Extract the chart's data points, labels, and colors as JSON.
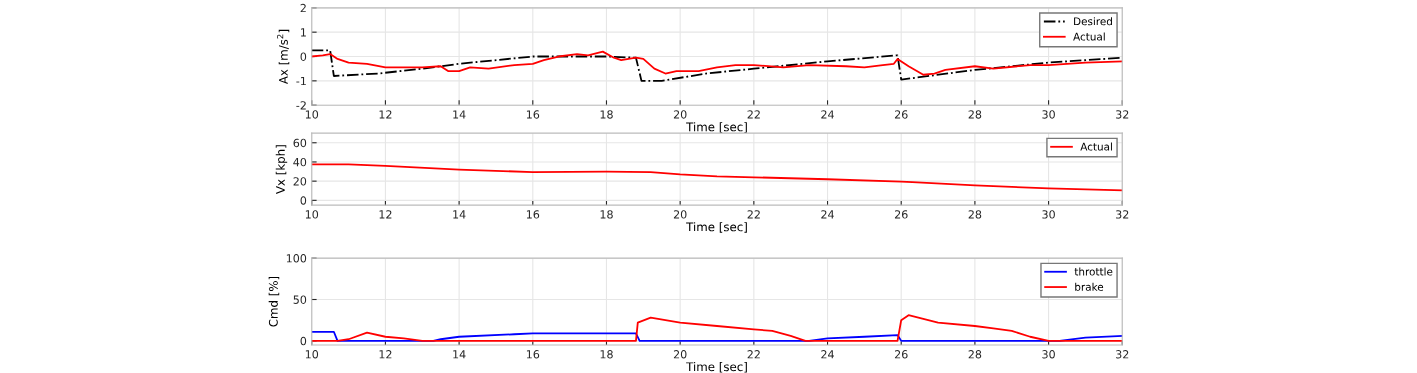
{
  "chart_data": [
    {
      "type": "line",
      "xlabel": "Time [sec]",
      "ylabel": "Ax [m/s$^{2}$]",
      "xlim": [
        10,
        32
      ],
      "xticks": [
        10,
        12,
        14,
        16,
        18,
        20,
        22,
        24,
        26,
        28,
        30,
        32
      ],
      "ylim": [
        -2,
        2
      ],
      "yticks": [
        -2,
        -1,
        0,
        1,
        2
      ],
      "grid": true,
      "legend": "top right",
      "series": [
        {
          "name": "Desired",
          "color": "#000000",
          "line_style": "dashdot",
          "x": [
            10,
            10.5,
            10.6,
            11.8,
            13,
            14,
            16,
            17,
            18,
            18.8,
            18.95,
            19.5,
            20.7,
            22,
            24,
            25.9,
            26,
            28,
            30,
            32
          ],
          "values": [
            0.25,
            0.25,
            -0.8,
            -0.7,
            -0.5,
            -0.3,
            0,
            0,
            0,
            -0.05,
            -1.0,
            -1.0,
            -0.7,
            -0.5,
            -0.2,
            0.05,
            -0.95,
            -0.55,
            -0.25,
            -0.05
          ]
        },
        {
          "name": "Actual",
          "color": "#ff0000",
          "x": [
            10,
            10.3,
            10.5,
            10.7,
            11,
            11.5,
            12,
            12.5,
            13,
            13.5,
            13.7,
            14,
            14.3,
            14.8,
            15.5,
            16,
            16.3,
            16.7,
            17.2,
            17.5,
            17.9,
            18.2,
            18.4,
            18.8,
            19,
            19.3,
            19.6,
            19.9,
            20.5,
            21,
            21.5,
            22,
            22.8,
            23.5,
            24.5,
            25,
            25.5,
            25.8,
            25.9,
            26.2,
            26.6,
            26.9,
            27.2,
            28,
            28.5,
            29.5,
            30,
            31,
            32
          ],
          "values": [
            0,
            0.05,
            0.1,
            -0.1,
            -0.25,
            -0.3,
            -0.45,
            -0.45,
            -0.45,
            -0.4,
            -0.6,
            -0.6,
            -0.45,
            -0.5,
            -0.35,
            -0.3,
            -0.15,
            0,
            0.1,
            0.05,
            0.2,
            -0.05,
            -0.15,
            -0.05,
            -0.1,
            -0.5,
            -0.7,
            -0.6,
            -0.6,
            -0.45,
            -0.35,
            -0.35,
            -0.45,
            -0.35,
            -0.4,
            -0.45,
            -0.35,
            -0.3,
            -0.1,
            -0.4,
            -0.75,
            -0.7,
            -0.55,
            -0.4,
            -0.5,
            -0.35,
            -0.35,
            -0.25,
            -0.2
          ]
        }
      ]
    },
    {
      "type": "line",
      "xlabel": "Time [sec]",
      "ylabel": "Vx [kph]",
      "xlim": [
        10,
        32
      ],
      "xticks": [
        10,
        12,
        14,
        16,
        18,
        20,
        22,
        24,
        26,
        28,
        30,
        32
      ],
      "ylim": [
        -5,
        70
      ],
      "yticks": [
        0,
        20,
        40,
        60
      ],
      "grid": true,
      "legend": "top right",
      "series": [
        {
          "name": "Actual",
          "color": "#ff0000",
          "x": [
            10,
            11,
            12,
            14,
            16,
            18,
            19.2,
            20,
            21,
            22,
            24,
            26,
            26.3,
            28,
            30,
            32
          ],
          "values": [
            37.5,
            37.5,
            36,
            32,
            29.5,
            30,
            29.5,
            27,
            25,
            24,
            22,
            19.5,
            19,
            15.5,
            12.5,
            10.5
          ]
        }
      ]
    },
    {
      "type": "line",
      "xlabel": "Time [sec]",
      "ylabel": "Cmd [%]",
      "xlim": [
        10,
        32
      ],
      "xticks": [
        10,
        12,
        14,
        16,
        18,
        20,
        22,
        24,
        26,
        28,
        30,
        32
      ],
      "ylim": [
        -5,
        100
      ],
      "yticks": [
        0,
        50,
        100
      ],
      "grid": true,
      "legend": "top right",
      "series": [
        {
          "name": "throttle",
          "color": "#0000ff",
          "x": [
            10,
            10.6,
            10.7,
            13.3,
            13.5,
            14,
            15.5,
            16,
            18.8,
            18.9,
            23.5,
            24,
            25,
            25.9,
            26,
            30.3,
            31,
            32
          ],
          "values": [
            11,
            11,
            0,
            0,
            2,
            5,
            8,
            9,
            9,
            0,
            0,
            3,
            5,
            7,
            0,
            0,
            4,
            6
          ]
        },
        {
          "name": "brake",
          "color": "#ff0000",
          "x": [
            10,
            10.7,
            11,
            11.5,
            12,
            12.5,
            13,
            18.8,
            18.85,
            19.2,
            20,
            21,
            22,
            22.5,
            23,
            23.4,
            25.9,
            26,
            26.2,
            27,
            28,
            28.5,
            29,
            29.5,
            30,
            32
          ],
          "values": [
            0,
            0,
            2,
            10,
            5,
            3,
            0,
            0,
            22,
            28,
            22,
            18,
            14,
            12,
            6,
            0,
            0,
            25,
            31,
            22,
            18,
            15,
            12,
            5,
            0,
            0
          ]
        }
      ]
    }
  ]
}
